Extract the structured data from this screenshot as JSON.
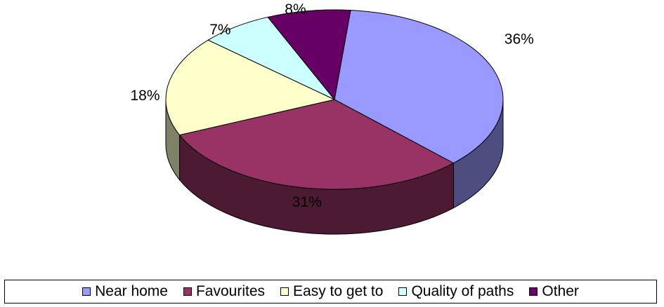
{
  "chart_data": {
    "type": "pie",
    "title": "",
    "style": "3d",
    "legend_position": "bottom",
    "slices": [
      {
        "name": "Near home",
        "value": 36,
        "label": "36%",
        "color": "#9999ff"
      },
      {
        "name": "Favourites",
        "value": 31,
        "label": "31%",
        "color": "#993366"
      },
      {
        "name": "Easy to get to",
        "value": 18,
        "label": "18%",
        "color": "#ffffcc"
      },
      {
        "name": "Quality of paths",
        "value": 7,
        "label": "7%",
        "color": "#ccffff"
      },
      {
        "name": "Other",
        "value": 8,
        "label": "8%",
        "color": "#660066"
      }
    ]
  }
}
